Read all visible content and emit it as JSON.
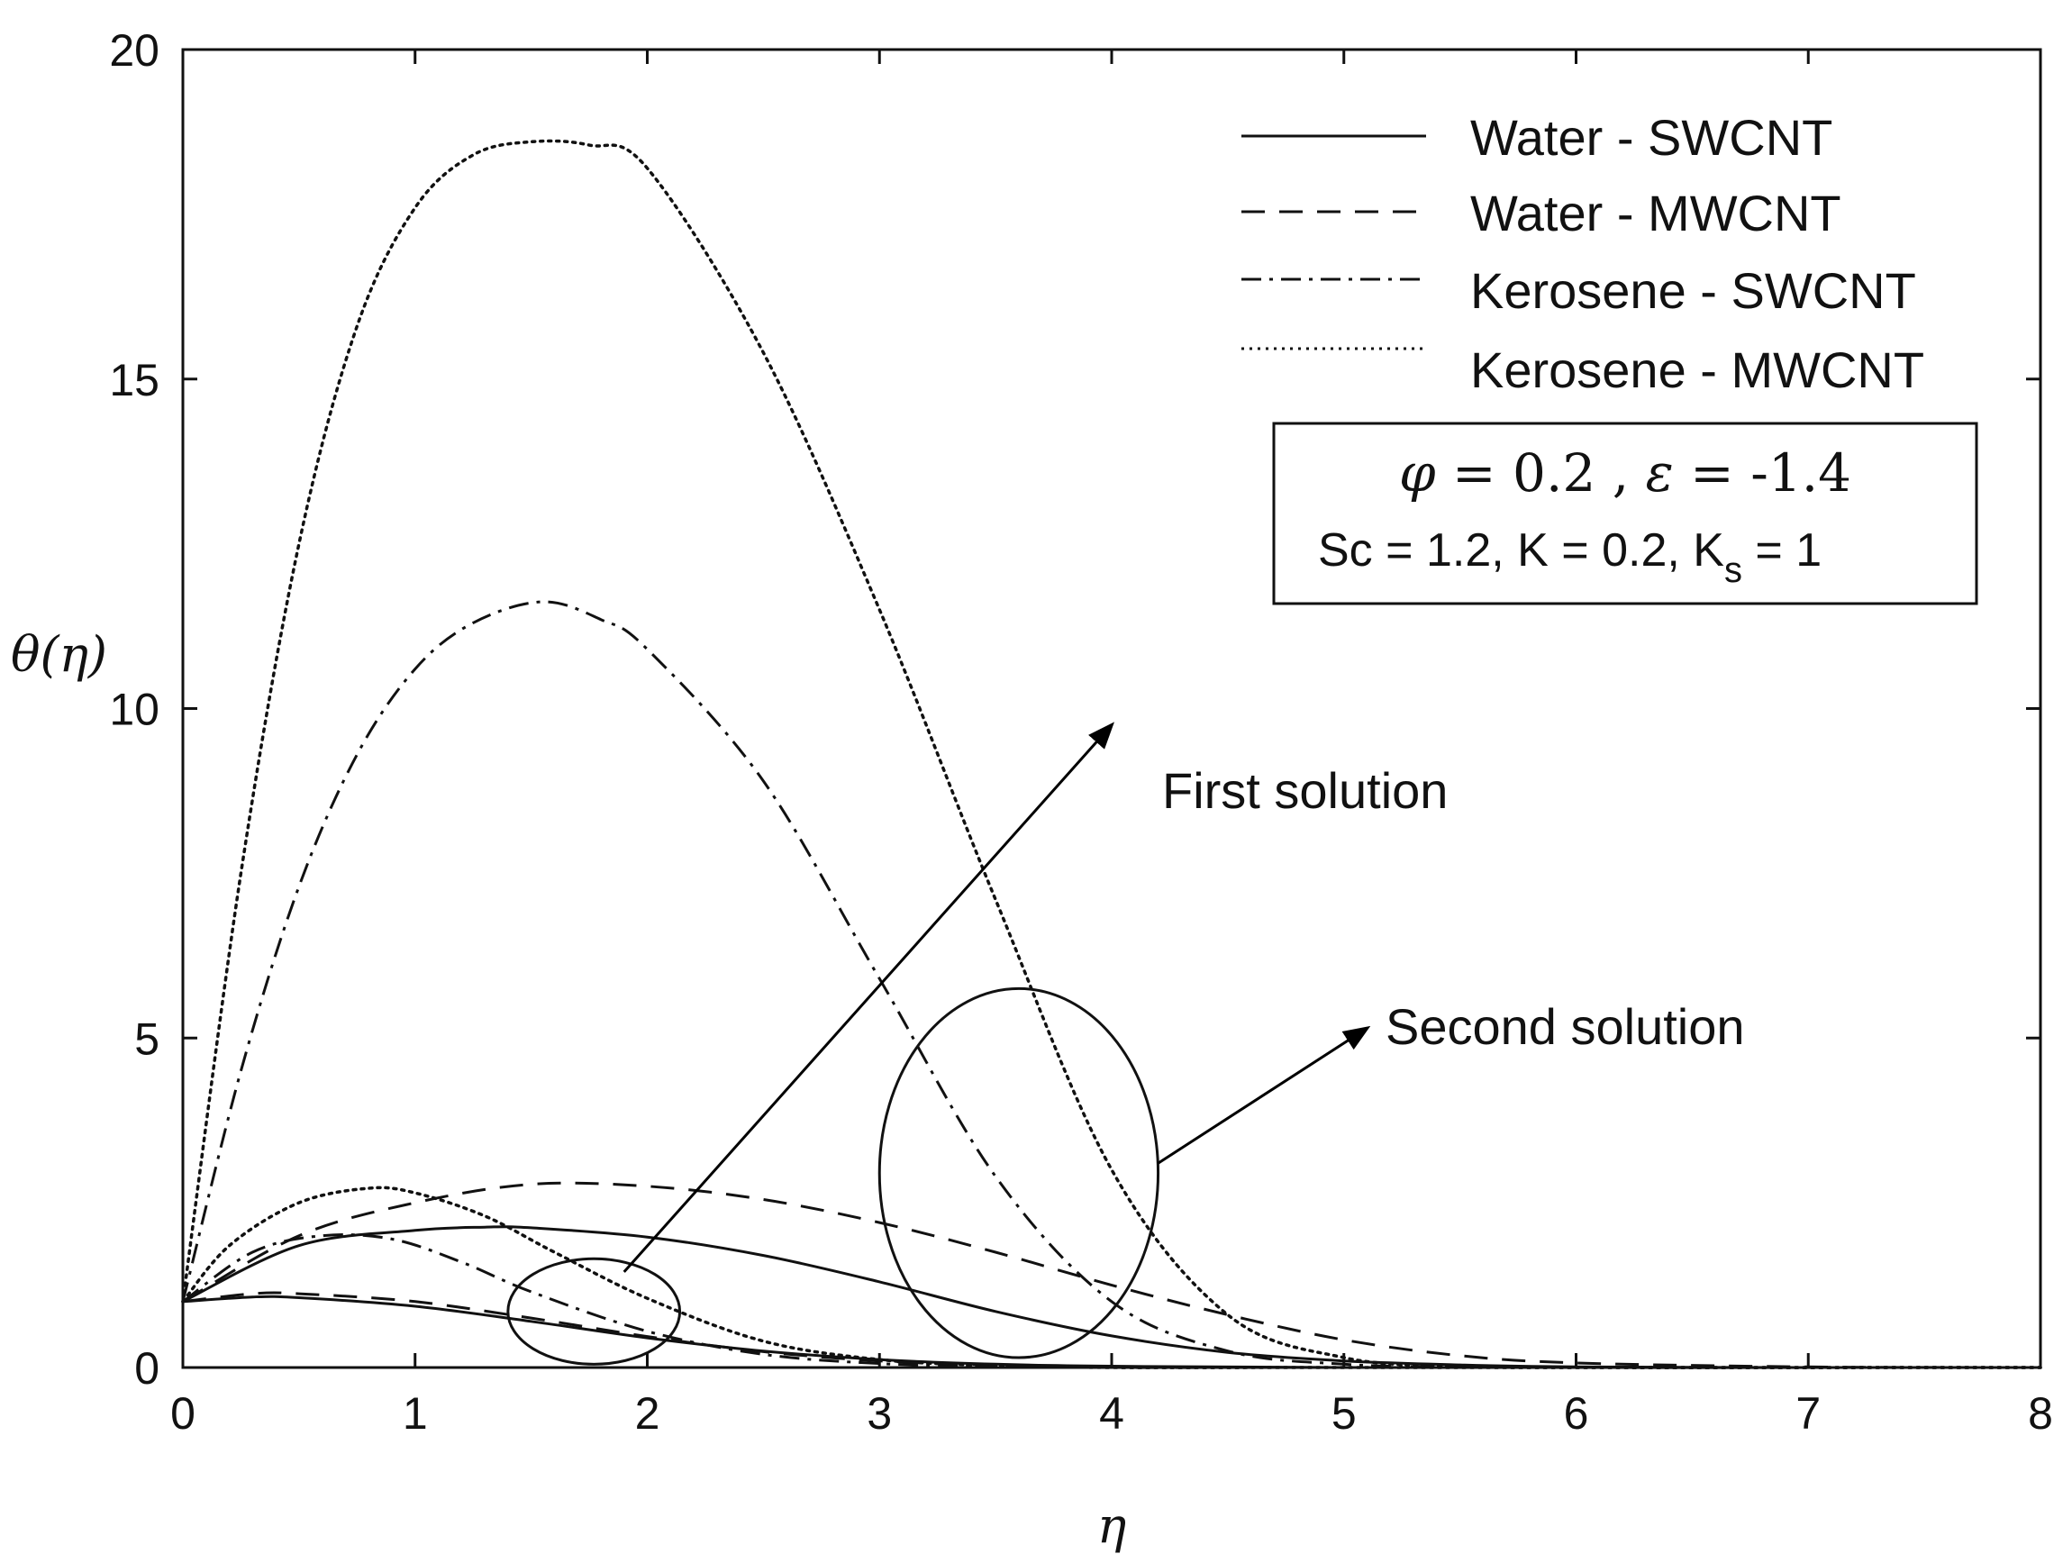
{
  "chart_data": {
    "type": "line",
    "xlabel": "η",
    "ylabel": "θ(η)",
    "xlim": [
      0,
      8
    ],
    "ylim": [
      0,
      20
    ],
    "xticks": [
      0,
      1,
      2,
      3,
      4,
      5,
      6,
      7,
      8
    ],
    "yticks": [
      0,
      5,
      10,
      15,
      20
    ],
    "grid": false,
    "legend_position": "top-right",
    "series": [
      {
        "name": "Water - SWCNT",
        "style": "solid",
        "first_solution": {
          "x": [
            0,
            0.5,
            1.0,
            1.3,
            1.5,
            2.0,
            2.5,
            3.0,
            3.5,
            4.0,
            4.5,
            5.0,
            5.5,
            6.0,
            7.0,
            8.0
          ],
          "y": [
            1.0,
            1.85,
            2.08,
            2.13,
            2.12,
            1.98,
            1.7,
            1.3,
            0.85,
            0.48,
            0.23,
            0.1,
            0.04,
            0.01,
            0,
            0
          ]
        },
        "second_solution": {
          "x": [
            0,
            0.3,
            0.5,
            1.0,
            1.5,
            2.0,
            2.5,
            3.0,
            3.5,
            4.0,
            5.0,
            8.0
          ],
          "y": [
            1.0,
            1.07,
            1.06,
            0.93,
            0.7,
            0.45,
            0.25,
            0.12,
            0.05,
            0.02,
            0,
            0
          ]
        }
      },
      {
        "name": "Water - MWCNT",
        "style": "dashed",
        "first_solution": {
          "x": [
            0,
            0.5,
            1.0,
            1.5,
            2.0,
            2.5,
            3.0,
            3.5,
            4.0,
            4.5,
            5.0,
            5.5,
            6.0,
            7.0,
            8.0
          ],
          "y": [
            1.0,
            2.0,
            2.5,
            2.78,
            2.75,
            2.55,
            2.2,
            1.75,
            1.25,
            0.8,
            0.42,
            0.18,
            0.07,
            0.01,
            0
          ]
        },
        "second_solution": {
          "x": [
            0,
            0.3,
            0.5,
            1.0,
            1.5,
            2.0,
            2.5,
            3.0,
            3.5,
            4.0,
            5.0,
            8.0
          ],
          "y": [
            1.0,
            1.12,
            1.12,
            1.0,
            0.75,
            0.47,
            0.24,
            0.1,
            0.04,
            0.01,
            0,
            0
          ]
        }
      },
      {
        "name": "Kerosene - SWCNT",
        "style": "dashdot",
        "first_solution": {
          "x": [
            0,
            0.25,
            0.5,
            0.75,
            1.0,
            1.25,
            1.55,
            1.8,
            2.0,
            2.5,
            3.0,
            3.5,
            4.0,
            4.5,
            5.0,
            5.5,
            6.0,
            8.0
          ],
          "y": [
            1.0,
            4.5,
            7.3,
            9.3,
            10.6,
            11.3,
            11.62,
            11.35,
            10.9,
            8.9,
            5.9,
            2.9,
            1.0,
            0.25,
            0.05,
            0.01,
            0,
            0
          ]
        },
        "second_solution": {
          "x": [
            0,
            0.3,
            0.6,
            0.9,
            1.2,
            1.5,
            2.0,
            2.5,
            3.0,
            3.5,
            4.0,
            5.0,
            8.0
          ],
          "y": [
            1.0,
            1.75,
            2.0,
            1.95,
            1.6,
            1.15,
            0.55,
            0.2,
            0.06,
            0.02,
            0,
            0,
            0
          ]
        }
      },
      {
        "name": "Kerosene - MWCNT",
        "style": "dotted",
        "first_solution": {
          "x": [
            0,
            0.25,
            0.5,
            0.75,
            1.0,
            1.25,
            1.5,
            1.75,
            2.0,
            2.5,
            3.0,
            3.5,
            4.0,
            4.5,
            5.0,
            5.5,
            6.0,
            8.0
          ],
          "y": [
            1.0,
            7.5,
            12.5,
            15.8,
            17.6,
            18.4,
            18.6,
            18.55,
            18.2,
            15.4,
            11.5,
            7.1,
            3.0,
            0.8,
            0.15,
            0.02,
            0,
            0
          ]
        },
        "second_solution": {
          "x": [
            0,
            0.2,
            0.5,
            0.8,
            1.0,
            1.3,
            1.6,
            2.0,
            2.5,
            3.0,
            3.5,
            4.0,
            5.0,
            8.0
          ],
          "y": [
            1.0,
            1.85,
            2.5,
            2.72,
            2.65,
            2.3,
            1.75,
            1.05,
            0.4,
            0.12,
            0.03,
            0,
            0,
            0
          ]
        }
      }
    ],
    "parameters": {
      "phi_label": "φ",
      "phi_value": "0.2",
      "eps_label": "ε",
      "eps_value": "-1.4",
      "sc_text": "Sc = 1.2, K = 0.2, K",
      "ks_sub": "s",
      "ks_tail": " = 1"
    },
    "annotations": {
      "first_solution": "First solution",
      "second_solution": "Second solution",
      "small_ellipse": {
        "cx": 1.77,
        "cy": 0.85,
        "rx": 0.37,
        "ry": 0.8
      },
      "large_ellipse": {
        "cx": 3.6,
        "cy": 2.95,
        "rx": 0.6,
        "ry": 2.8
      },
      "first_arrow": {
        "from": [
          1.9,
          1.45
        ],
        "to": [
          4.0,
          9.75
        ]
      },
      "second_arrow": {
        "from": [
          4.2,
          3.1
        ],
        "to": [
          5.1,
          5.15
        ]
      }
    }
  }
}
